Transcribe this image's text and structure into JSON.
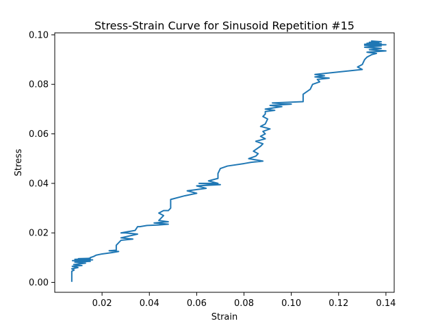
{
  "chart_data": {
    "type": "line",
    "title": "Stress-Strain Curve for Sinusoid Repetition #15",
    "xlabel": "Strain",
    "ylabel": "Stress",
    "xlim": [
      0.0,
      0.1435
    ],
    "ylim": [
      -0.004,
      0.1008
    ],
    "xticks": [
      0.02,
      0.04,
      0.06,
      0.08,
      0.1,
      0.12,
      0.14
    ],
    "xtick_labels": [
      "0.02",
      "0.04",
      "0.06",
      "0.08",
      "0.10",
      "0.12",
      "0.14"
    ],
    "yticks": [
      0.0,
      0.02,
      0.04,
      0.06,
      0.08,
      0.1
    ],
    "ytick_labels": [
      "0.00",
      "0.02",
      "0.04",
      "0.06",
      "0.08",
      "0.10"
    ],
    "grid": false,
    "series": [
      {
        "color": "#1f77b4",
        "x": [
          0.0072,
          0.0072,
          0.0082,
          0.0072,
          0.0098,
          0.0074,
          0.0115,
          0.008,
          0.013,
          0.0085,
          0.015,
          0.0075,
          0.016,
          0.0085,
          0.015,
          0.01,
          0.014,
          0.015,
          0.015,
          0.0165,
          0.0175,
          0.02,
          0.024,
          0.027,
          0.023,
          0.026,
          0.026,
          0.028,
          0.033,
          0.028,
          0.035,
          0.03,
          0.028,
          0.031,
          0.034,
          0.035,
          0.036,
          0.039,
          0.044,
          0.048,
          0.042,
          0.048,
          0.044,
          0.046,
          0.044,
          0.046,
          0.048,
          0.049,
          0.049,
          0.055,
          0.06,
          0.056,
          0.064,
          0.06,
          0.07,
          0.061,
          0.069,
          0.065,
          0.069,
          0.069,
          0.07,
          0.073,
          0.08,
          0.083,
          0.088,
          0.082,
          0.085,
          0.086,
          0.084,
          0.087,
          0.088,
          0.085,
          0.089,
          0.087,
          0.089,
          0.088,
          0.091,
          0.087,
          0.089,
          0.09,
          0.088,
          0.089,
          0.089,
          0.093,
          0.089,
          0.096,
          0.091,
          0.1,
          0.092,
          0.105,
          0.105,
          0.108,
          0.109,
          0.112,
          0.111,
          0.116,
          0.11,
          0.114,
          0.11,
          0.12,
          0.13,
          0.128,
          0.13,
          0.131,
          0.132,
          0.133,
          0.134,
          0.136,
          0.132,
          0.14,
          0.133,
          0.138,
          0.131,
          0.138,
          0.131,
          0.14,
          0.131,
          0.138,
          0.132,
          0.137,
          0.133,
          0.138,
          0.134
        ],
        "y": [
          0.0005,
          0.0045,
          0.005,
          0.0055,
          0.006,
          0.0065,
          0.0068,
          0.0072,
          0.0078,
          0.0082,
          0.0085,
          0.0088,
          0.0091,
          0.0093,
          0.0095,
          0.0096,
          0.0097,
          0.0098,
          0.01,
          0.0105,
          0.011,
          0.0115,
          0.012,
          0.0125,
          0.0128,
          0.013,
          0.015,
          0.017,
          0.0175,
          0.018,
          0.0195,
          0.02,
          0.02,
          0.0205,
          0.021,
          0.0225,
          0.0225,
          0.023,
          0.0232,
          0.0235,
          0.024,
          0.0245,
          0.025,
          0.027,
          0.028,
          0.029,
          0.029,
          0.03,
          0.0335,
          0.035,
          0.036,
          0.037,
          0.038,
          0.039,
          0.0395,
          0.04,
          0.04,
          0.041,
          0.042,
          0.044,
          0.046,
          0.047,
          0.048,
          0.0485,
          0.049,
          0.05,
          0.051,
          0.052,
          0.053,
          0.055,
          0.056,
          0.057,
          0.058,
          0.059,
          0.06,
          0.061,
          0.062,
          0.063,
          0.064,
          0.066,
          0.067,
          0.068,
          0.069,
          0.0695,
          0.07,
          0.071,
          0.0715,
          0.072,
          0.0725,
          0.073,
          0.076,
          0.078,
          0.08,
          0.081,
          0.082,
          0.0825,
          0.083,
          0.0835,
          0.084,
          0.085,
          0.086,
          0.087,
          0.088,
          0.09,
          0.091,
          0.0915,
          0.092,
          0.0925,
          0.093,
          0.0935,
          0.094,
          0.0945,
          0.095,
          0.0955,
          0.0958,
          0.096,
          0.0962,
          0.0964,
          0.0966,
          0.0968,
          0.097,
          0.0972,
          0.0975
        ]
      }
    ]
  }
}
